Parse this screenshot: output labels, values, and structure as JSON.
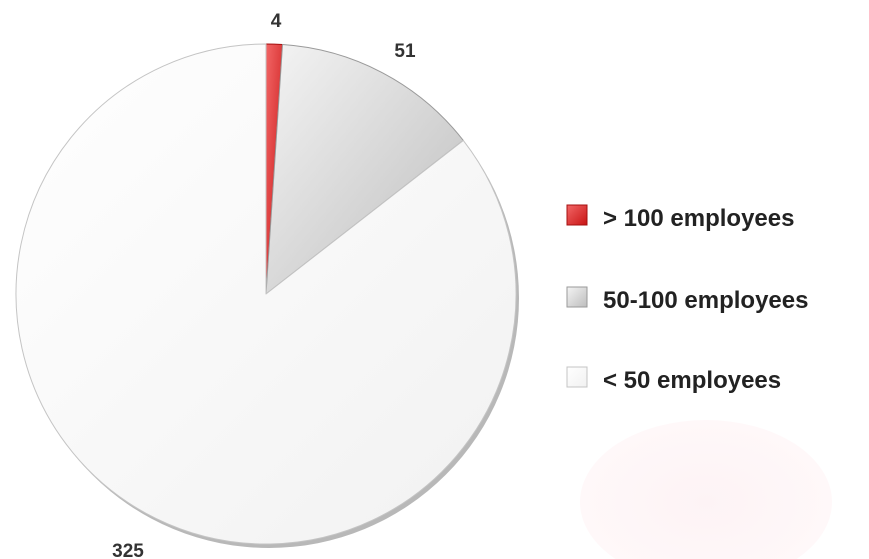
{
  "chart_data": {
    "type": "pie",
    "title": "",
    "slices": [
      {
        "label": "> 100 employees",
        "value": 4,
        "color": "#e02a2a"
      },
      {
        "label": "50-100 employees",
        "value": 51,
        "color": "#dcdcdc"
      },
      {
        "label": "< 50 employees",
        "value": 325,
        "color": "#ffffff"
      }
    ],
    "start_angle_deg": 0,
    "direction": "clockwise",
    "data_labels_shown": true,
    "legend_position": "right"
  }
}
